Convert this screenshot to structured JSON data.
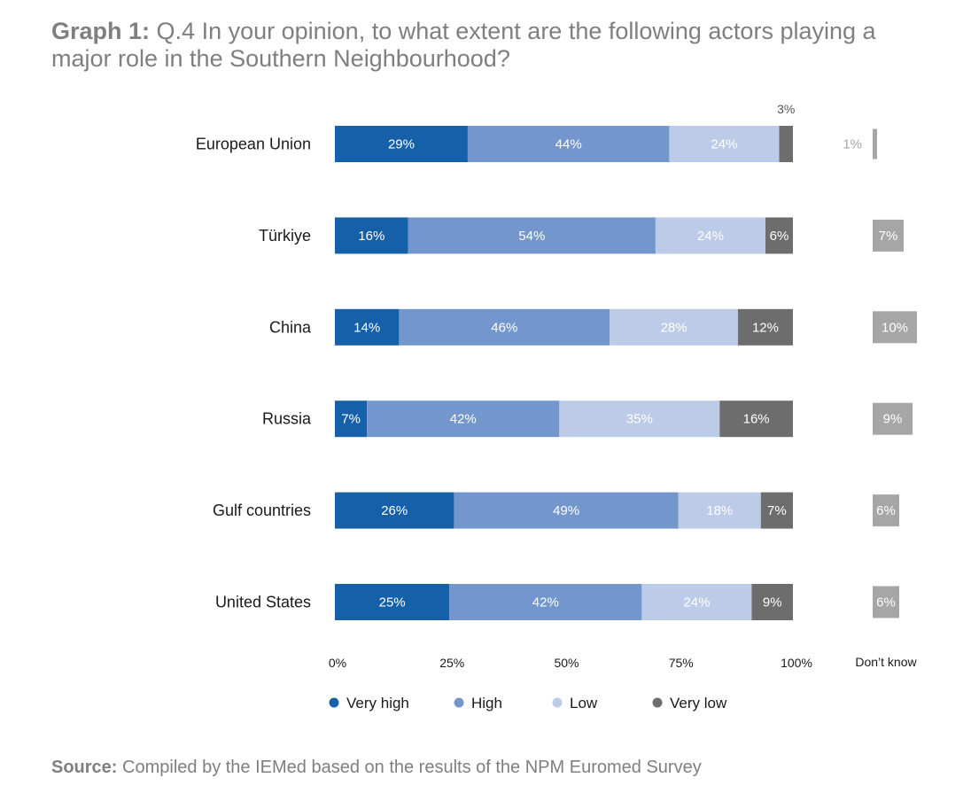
{
  "title": {
    "prefix": "Graph 1:",
    "text": "Q.4 In your opinion, to what extent are the following actors playing a major role in the Southern Neighbourhood?"
  },
  "source": {
    "prefix": "Source:",
    "text": "Compiled by the IEMed based on the results of the NPM Euromed Survey"
  },
  "chart_data": {
    "type": "bar",
    "orientation": "horizontal",
    "stacked": true,
    "normalized": true,
    "categories": [
      "European Union",
      "Türkiye",
      "China",
      "Russia",
      "Gulf countries",
      "United States"
    ],
    "series": [
      {
        "name": "Very high",
        "color": "#1560a8",
        "values": [
          29,
          16,
          14,
          7,
          26,
          25
        ]
      },
      {
        "name": "High",
        "color": "#7397cc",
        "values": [
          44,
          54,
          46,
          42,
          49,
          42
        ]
      },
      {
        "name": "Low",
        "color": "#bccbe8",
        "values": [
          24,
          24,
          28,
          35,
          18,
          24
        ]
      },
      {
        "name": "Very low",
        "color": "#6d6d6d",
        "values": [
          3,
          6,
          12,
          16,
          7,
          9
        ]
      }
    ],
    "labels": [
      [
        "29%",
        "44%",
        "24%",
        "3%"
      ],
      [
        "16%",
        "54%",
        "24%",
        "6%"
      ],
      [
        "14%",
        "46%",
        "28%",
        "12%"
      ],
      [
        "7%",
        "42%",
        "35%",
        "16%"
      ],
      [
        "26%",
        "49%",
        "18%",
        "7%"
      ],
      [
        "25%",
        "42%",
        "24%",
        "9%"
      ]
    ],
    "dont_know": {
      "label": "Don’t know",
      "color": "#a6a6a6",
      "values": [
        1,
        7,
        10,
        9,
        6,
        6
      ],
      "labels": [
        "1%",
        "7%",
        "10%",
        "9%",
        "6%",
        "6%"
      ]
    },
    "x_ticks": [
      "0%",
      "25%",
      "50%",
      "75%",
      "100%"
    ],
    "xlim": [
      0,
      100
    ],
    "grid": false,
    "legend_position": "bottom"
  }
}
